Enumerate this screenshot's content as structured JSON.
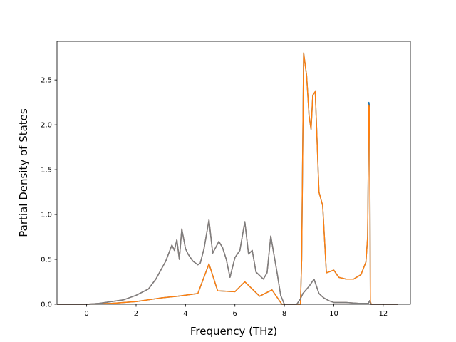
{
  "chart_data": {
    "type": "line",
    "xlabel": "Frequency (THz)",
    "ylabel": "Partial Density of States",
    "xlim": [
      -1.2,
      13.1
    ],
    "ylim": [
      0,
      2.93
    ],
    "xticks": [
      0,
      2,
      4,
      6,
      8,
      10,
      12
    ],
    "yticks": [
      0.0,
      0.5,
      1.0,
      1.5,
      2.0,
      2.5
    ],
    "xtick_labels": [
      "0",
      "2",
      "4",
      "6",
      "8",
      "10",
      "12"
    ],
    "ytick_labels": [
      "0.0",
      "0.5",
      "1.0",
      "1.5",
      "2.0",
      "2.5"
    ],
    "grid": false,
    "legend": "none",
    "series": [
      {
        "color": "#1f77b4",
        "x": [
          -1.2,
          0.0,
          1.0,
          2.0,
          3.0,
          3.7,
          4.5,
          4.95,
          5.3,
          6.0,
          6.4,
          7.0,
          7.5,
          7.9,
          8.5,
          8.65,
          8.7,
          8.78,
          8.9,
          9.0,
          9.08,
          9.15,
          9.25,
          9.4,
          9.55,
          9.7,
          10.0,
          10.2,
          10.5,
          10.8,
          11.1,
          11.3,
          11.37,
          11.42,
          11.45,
          11.48,
          11.52,
          12.6
        ],
        "y": [
          0.0,
          0.0,
          0.01,
          0.03,
          0.07,
          0.09,
          0.12,
          0.45,
          0.15,
          0.14,
          0.25,
          0.09,
          0.16,
          0.0,
          0.0,
          0.0,
          0.5,
          2.8,
          2.55,
          2.1,
          1.95,
          2.33,
          2.37,
          1.25,
          1.1,
          0.35,
          0.38,
          0.3,
          0.28,
          0.28,
          0.33,
          0.47,
          0.75,
          2.25,
          2.2,
          0.03,
          0.0,
          0.0
        ]
      },
      {
        "color": "#ff7f0e",
        "x": [
          -1.2,
          0.0,
          1.0,
          2.0,
          3.0,
          3.7,
          4.5,
          4.95,
          5.3,
          6.0,
          6.4,
          7.0,
          7.5,
          7.9,
          8.5,
          8.65,
          8.7,
          8.78,
          8.9,
          9.0,
          9.08,
          9.15,
          9.25,
          9.4,
          9.55,
          9.7,
          10.0,
          10.2,
          10.5,
          10.8,
          11.1,
          11.3,
          11.37,
          11.42,
          11.45,
          11.48,
          11.52,
          12.6
        ],
        "y": [
          0.0,
          0.0,
          0.01,
          0.03,
          0.07,
          0.09,
          0.12,
          0.45,
          0.15,
          0.14,
          0.25,
          0.09,
          0.16,
          0.0,
          0.0,
          0.0,
          0.5,
          2.8,
          2.55,
          2.1,
          1.95,
          2.33,
          2.37,
          1.25,
          1.1,
          0.35,
          0.38,
          0.3,
          0.28,
          0.28,
          0.33,
          0.47,
          0.75,
          2.22,
          2.17,
          0.03,
          0.0,
          0.0
        ]
      },
      {
        "color": "#8c564b",
        "x": [
          -1.2,
          0.0,
          0.5,
          1.0,
          1.5,
          2.0,
          2.5,
          2.8,
          3.0,
          3.2,
          3.45,
          3.55,
          3.65,
          3.75,
          3.85,
          4.0,
          4.1,
          4.3,
          4.5,
          4.6,
          4.75,
          4.95,
          5.1,
          5.35,
          5.5,
          5.65,
          5.8,
          6.0,
          6.2,
          6.4,
          6.55,
          6.7,
          6.85,
          7.0,
          7.15,
          7.3,
          7.45,
          7.55,
          7.7,
          7.85,
          8.0,
          8.5,
          8.65,
          8.75,
          9.0,
          9.2,
          9.4,
          9.6,
          9.8,
          10.0,
          10.5,
          11.0,
          11.4,
          11.45,
          11.5,
          12.6
        ],
        "y": [
          0.0,
          0.0,
          0.01,
          0.03,
          0.05,
          0.1,
          0.17,
          0.28,
          0.38,
          0.48,
          0.66,
          0.6,
          0.72,
          0.5,
          0.84,
          0.62,
          0.56,
          0.48,
          0.44,
          0.46,
          0.62,
          0.94,
          0.57,
          0.7,
          0.63,
          0.5,
          0.3,
          0.52,
          0.6,
          0.92,
          0.56,
          0.6,
          0.36,
          0.32,
          0.28,
          0.35,
          0.76,
          0.6,
          0.36,
          0.1,
          0.0,
          0.0,
          0.06,
          0.12,
          0.2,
          0.28,
          0.12,
          0.07,
          0.04,
          0.02,
          0.02,
          0.01,
          0.01,
          0.04,
          0.0,
          0.0
        ]
      },
      {
        "color": "#7f7f7f",
        "x": [
          -1.2,
          0.0,
          0.5,
          1.0,
          1.5,
          2.0,
          2.5,
          2.8,
          3.0,
          3.2,
          3.45,
          3.55,
          3.65,
          3.75,
          3.85,
          4.0,
          4.1,
          4.3,
          4.5,
          4.6,
          4.75,
          4.95,
          5.1,
          5.35,
          5.5,
          5.65,
          5.8,
          6.0,
          6.2,
          6.4,
          6.55,
          6.7,
          6.85,
          7.0,
          7.15,
          7.3,
          7.45,
          7.55,
          7.7,
          7.85,
          8.0,
          8.5,
          8.65,
          8.75,
          9.0,
          9.2,
          9.4,
          9.6,
          9.8,
          10.0,
          10.5,
          11.0,
          11.4,
          11.45,
          11.5,
          12.6
        ],
        "y": [
          0.0,
          0.0,
          0.01,
          0.03,
          0.05,
          0.1,
          0.17,
          0.28,
          0.38,
          0.48,
          0.66,
          0.6,
          0.72,
          0.5,
          0.84,
          0.62,
          0.56,
          0.48,
          0.44,
          0.46,
          0.62,
          0.94,
          0.57,
          0.7,
          0.63,
          0.5,
          0.3,
          0.52,
          0.6,
          0.92,
          0.56,
          0.6,
          0.36,
          0.32,
          0.28,
          0.35,
          0.76,
          0.6,
          0.36,
          0.1,
          0.0,
          0.0,
          0.06,
          0.12,
          0.2,
          0.28,
          0.12,
          0.07,
          0.04,
          0.02,
          0.02,
          0.01,
          0.01,
          0.04,
          0.0,
          0.0
        ]
      }
    ]
  }
}
